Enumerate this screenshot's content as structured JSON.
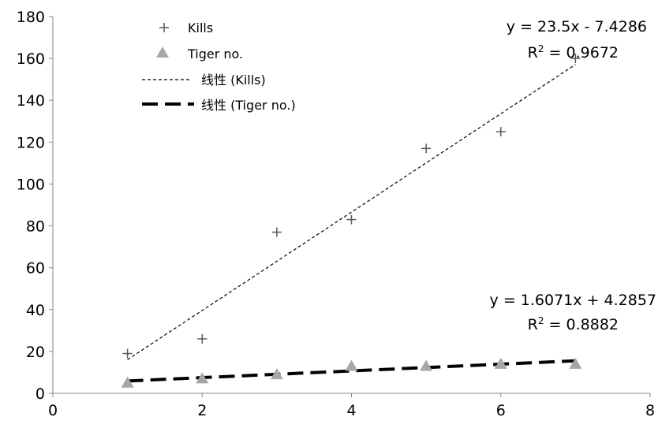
{
  "chart_data": {
    "type": "scatter",
    "xlim": [
      0,
      8
    ],
    "ylim": [
      0,
      180
    ],
    "xticks": [
      0,
      2,
      4,
      6,
      8
    ],
    "yticks": [
      0,
      20,
      40,
      60,
      80,
      100,
      120,
      140,
      160,
      180
    ],
    "grid": false,
    "legend_position": "top-left",
    "series": [
      {
        "name": "Kills",
        "marker": "plus",
        "color": "#595959",
        "x": [
          1,
          2,
          3,
          4,
          5,
          6,
          7
        ],
        "y": [
          19,
          26,
          77,
          83,
          117,
          125,
          160
        ]
      },
      {
        "name": "Tiger no.",
        "marker": "triangle",
        "color": "#a6a6a6",
        "x": [
          1,
          2,
          3,
          4,
          5,
          6,
          7
        ],
        "y": [
          5,
          7,
          9,
          13,
          13,
          14,
          14
        ]
      }
    ],
    "trendlines": [
      {
        "name": "线性 (Kills)",
        "slope": 23.5,
        "intercept": -7.4286,
        "x_range": [
          1,
          7
        ],
        "style": "dotted",
        "equation": "y = 23.5x - 7.4286",
        "r2_label": "R",
        "r2_value": " = 0.9672"
      },
      {
        "name": "线性 (Tiger no.)",
        "slope": 1.6071,
        "intercept": 4.2857,
        "x_range": [
          1,
          7
        ],
        "style": "dashed",
        "equation": "y = 1.6071x + 4.2857",
        "r2_label": "R",
        "r2_value": " = 0.8882"
      }
    ]
  }
}
